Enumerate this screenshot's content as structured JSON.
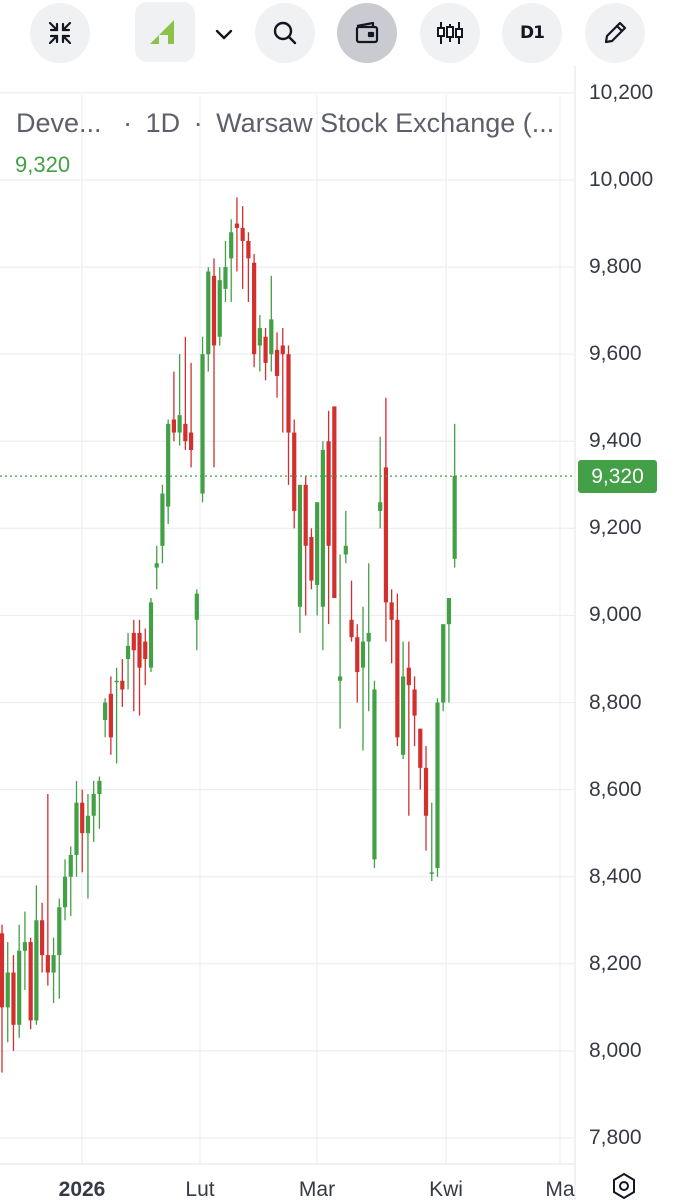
{
  "toolbar": {
    "buttons": [
      {
        "name": "collapse-icon",
        "label": ""
      },
      {
        "name": "symbol-logo",
        "label": ""
      },
      {
        "name": "chevron-down-icon",
        "label": ""
      },
      {
        "name": "search-icon",
        "label": ""
      },
      {
        "name": "wallet-icon",
        "label": ""
      },
      {
        "name": "indicators-icon",
        "label": ""
      },
      {
        "name": "interval-button",
        "label": "D1"
      },
      {
        "name": "pencil-icon",
        "label": ""
      }
    ],
    "interval_label": "D1",
    "logo_color": "#8bc34a"
  },
  "legend": {
    "symbol": "Deve...",
    "interval": "1D",
    "exchange": "Warsaw Stock Exchange (...",
    "separator": "·",
    "last_value": "9,320"
  },
  "price_badge": "9,320",
  "colors": {
    "up": "#43a047",
    "down": "#d32f2f",
    "grid": "#eceef2",
    "price_line": "#43a047"
  },
  "chart_data": {
    "type": "candlestick",
    "y_ticks": [
      "7,800",
      "8,000",
      "8,200",
      "8,400",
      "8,600",
      "8,800",
      "9,000",
      "9,200",
      "9,400",
      "9,600",
      "9,800",
      "10,000",
      "10,200"
    ],
    "ylim": [
      7760,
      10250
    ],
    "x_ticks": [
      {
        "label": "2026",
        "bold": true
      },
      {
        "label": "Lut",
        "bold": false
      },
      {
        "label": "Mar",
        "bold": false
      },
      {
        "label": "Kwi",
        "bold": false
      },
      {
        "label": "Ma",
        "bold": false
      }
    ],
    "last_price": 9320,
    "candles": [
      [
        8270,
        8290,
        7950,
        8100
      ],
      [
        8100,
        8250,
        8020,
        8180
      ],
      [
        8180,
        8220,
        8000,
        8060
      ],
      [
        8060,
        8290,
        8030,
        8230
      ],
      [
        8230,
        8320,
        8140,
        8250
      ],
      [
        8250,
        8260,
        8050,
        8070
      ],
      [
        8070,
        8380,
        8060,
        8300
      ],
      [
        8300,
        8340,
        8180,
        8220
      ],
      [
        8220,
        8590,
        8150,
        8180
      ],
      [
        8180,
        8260,
        8110,
        8220
      ],
      [
        8220,
        8350,
        8120,
        8330
      ],
      [
        8330,
        8440,
        8300,
        8400
      ],
      [
        8400,
        8470,
        8310,
        8450
      ],
      [
        8450,
        8620,
        8400,
        8570
      ],
      [
        8570,
        8600,
        8410,
        8500
      ],
      [
        8500,
        8590,
        8350,
        8540
      ],
      [
        8540,
        8620,
        8480,
        8590
      ],
      [
        8590,
        8630,
        8510,
        8620
      ],
      [
        8760,
        8810,
        8720,
        8800
      ],
      [
        8820,
        8860,
        8680,
        8720
      ],
      [
        8850,
        8880,
        8660,
        8850
      ],
      [
        8850,
        8900,
        8790,
        8830
      ],
      [
        8900,
        8960,
        8830,
        8930
      ],
      [
        8960,
        8990,
        8780,
        8920
      ],
      [
        8960,
        8990,
        8770,
        8880
      ],
      [
        8940,
        8970,
        8840,
        8900
      ],
      [
        8880,
        9040,
        8870,
        9030
      ],
      [
        9110,
        9160,
        9060,
        9120
      ],
      [
        9160,
        9300,
        9120,
        9280
      ],
      [
        9250,
        9450,
        9210,
        9440
      ],
      [
        9450,
        9560,
        9400,
        9420
      ],
      [
        9420,
        9600,
        9390,
        9460
      ],
      [
        9440,
        9640,
        9380,
        9400
      ],
      [
        9420,
        9580,
        9340,
        9380
      ],
      [
        8990,
        9060,
        8920,
        9050
      ],
      [
        9280,
        9640,
        9260,
        9600
      ],
      [
        9600,
        9800,
        9560,
        9790
      ],
      [
        9780,
        9820,
        9340,
        9620
      ],
      [
        9640,
        9800,
        9620,
        9770
      ],
      [
        9750,
        9860,
        9720,
        9800
      ],
      [
        9820,
        9910,
        9720,
        9880
      ],
      [
        9900,
        9960,
        9790,
        9890
      ],
      [
        9890,
        9940,
        9750,
        9860
      ],
      [
        9860,
        9880,
        9720,
        9820
      ],
      [
        9810,
        9830,
        9570,
        9600
      ],
      [
        9620,
        9690,
        9560,
        9660
      ],
      [
        9640,
        9660,
        9540,
        9580
      ],
      [
        9600,
        9780,
        9560,
        9680
      ],
      [
        9610,
        9650,
        9500,
        9550
      ],
      [
        9620,
        9660,
        9420,
        9600
      ],
      [
        9600,
        9620,
        9300,
        9420
      ],
      [
        9420,
        9450,
        9200,
        9240
      ],
      [
        9020,
        9280,
        8960,
        9300
      ],
      [
        9300,
        9320,
        9000,
        9160
      ],
      [
        9180,
        9200,
        9060,
        9080
      ],
      [
        9070,
        9260,
        9000,
        9260
      ],
      [
        9020,
        9400,
        8920,
        9380
      ],
      [
        9400,
        9470,
        8980,
        9160
      ],
      [
        9480,
        9480,
        9060,
        9040
      ],
      [
        8850,
        9140,
        8740,
        8860
      ],
      [
        9140,
        9240,
        9120,
        9160
      ],
      [
        8990,
        9080,
        8940,
        8950
      ],
      [
        8950,
        8980,
        8800,
        8870
      ],
      [
        8880,
        9020,
        8690,
        8940
      ],
      [
        8940,
        9120,
        8780,
        8960
      ],
      [
        8440,
        8850,
        8420,
        8830
      ],
      [
        9240,
        9410,
        9200,
        9260
      ],
      [
        9340,
        9500,
        8940,
        9030
      ],
      [
        9030,
        9060,
        8890,
        8990
      ],
      [
        8990,
        9050,
        8700,
        8720
      ],
      [
        8680,
        8940,
        8670,
        8860
      ],
      [
        8880,
        8940,
        8540,
        8840
      ],
      [
        8830,
        8860,
        8700,
        8770
      ],
      [
        8740,
        8740,
        8600,
        8650
      ],
      [
        8650,
        8700,
        8460,
        8540
      ],
      [
        8410,
        8570,
        8390,
        8410
      ],
      [
        8420,
        8810,
        8400,
        8800
      ],
      [
        8800,
        8980,
        8780,
        8980
      ],
      [
        8980,
        9040,
        8800,
        9040
      ],
      [
        9130,
        9440,
        9110,
        9320
      ]
    ]
  }
}
